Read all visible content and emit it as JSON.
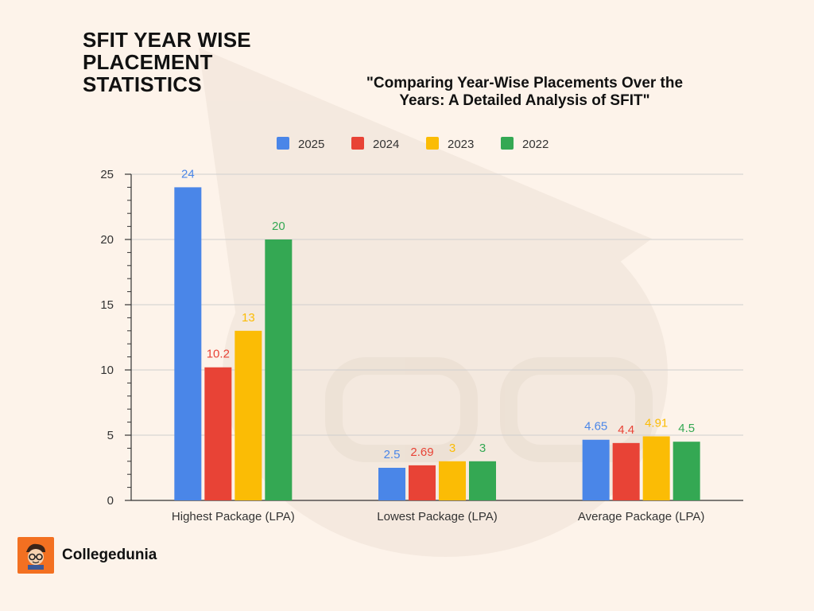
{
  "page": {
    "title_line1": "SFIT YEAR WISE",
    "title_line2": "PLACEMENT",
    "title_line3": "STATISTICS"
  },
  "brand": {
    "name": "Collegedunia",
    "logo_icon": "student-avatar-icon"
  },
  "chart_data": {
    "type": "bar",
    "title_line1": "\"Comparing Year-Wise Placements Over the",
    "title_line2": "Years: A Detailed Analysis of  SFIT\"",
    "categories": [
      "Highest Package (LPA)",
      "Lowest Package (LPA)",
      "Average Package (LPA)"
    ],
    "series": [
      {
        "name": "2025",
        "color": "#4a86e8",
        "values": [
          24,
          2.5,
          4.65
        ],
        "labels": [
          "24",
          "2.5",
          "4.65"
        ]
      },
      {
        "name": "2024",
        "color": "#e84336",
        "values": [
          10.2,
          2.69,
          4.4
        ],
        "labels": [
          "10.2",
          "2.69",
          "4.4"
        ]
      },
      {
        "name": "2023",
        "color": "#fbbc05",
        "values": [
          13,
          3,
          4.91
        ],
        "labels": [
          "13",
          "3",
          "4.91"
        ]
      },
      {
        "name": "2022",
        "color": "#34a853",
        "values": [
          20,
          3,
          4.5
        ],
        "labels": [
          "20",
          "3",
          "4.5"
        ]
      }
    ],
    "ylim": [
      0,
      25
    ],
    "yticks": [
      0,
      5,
      10,
      15,
      20,
      25
    ],
    "ytick_labels": [
      "0",
      "5",
      "10",
      "15",
      "20",
      "25"
    ],
    "xlabel": "",
    "ylabel": "",
    "grid": true,
    "legend_position": "top"
  }
}
